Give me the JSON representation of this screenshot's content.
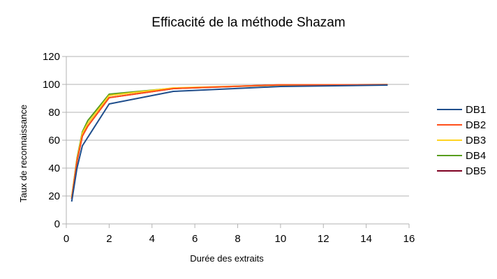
{
  "chart_data": {
    "type": "line",
    "title": "Efficacité de la méthode Shazam",
    "xlabel": "Durée des extraits",
    "ylabel": "Taux de reconnaissance",
    "xlim": [
      0,
      16
    ],
    "ylim": [
      0,
      120
    ],
    "x_ticks": [
      "0",
      "2",
      "4",
      "6",
      "8",
      "10",
      "12",
      "14",
      "16"
    ],
    "y_ticks": [
      "0",
      "20",
      "40",
      "60",
      "80",
      "100",
      "120"
    ],
    "grid": "horizontal",
    "legend_position": "right",
    "series": [
      {
        "name": "DB1",
        "color": "#1f4e8c",
        "x": [
          0.25,
          0.5,
          0.75,
          1,
          2,
          5,
          10,
          15
        ],
        "y": [
          16,
          40,
          56,
          62,
          86,
          95,
          98.5,
          99.5
        ]
      },
      {
        "name": "DB2",
        "color": "#ff4f1a",
        "x": [
          0.25,
          0.5,
          0.75,
          1,
          2,
          5,
          10,
          15
        ],
        "y": [
          18,
          45,
          63,
          70,
          90.5,
          97,
          99.7,
          99.8
        ]
      },
      {
        "name": "DB3",
        "color": "#ffd320",
        "x": [
          0.25,
          0.5,
          0.75,
          1,
          2,
          5,
          10,
          15
        ],
        "y": [
          19,
          46,
          65,
          72,
          92,
          97.5,
          99.6,
          99.8
        ]
      },
      {
        "name": "DB4",
        "color": "#579d1c",
        "x": [
          0.25,
          0.5,
          0.75,
          1,
          2,
          5,
          10,
          15
        ],
        "y": [
          19,
          47,
          66,
          74,
          93,
          97.3,
          99.5,
          99.7
        ]
      },
      {
        "name": "DB5",
        "color": "#7e0021",
        "x": [
          0.25,
          0.5,
          0.75,
          1,
          2,
          5,
          10,
          15
        ],
        "y": [
          18,
          45,
          63,
          70,
          90.5,
          97,
          99.7,
          99.8
        ]
      }
    ]
  }
}
